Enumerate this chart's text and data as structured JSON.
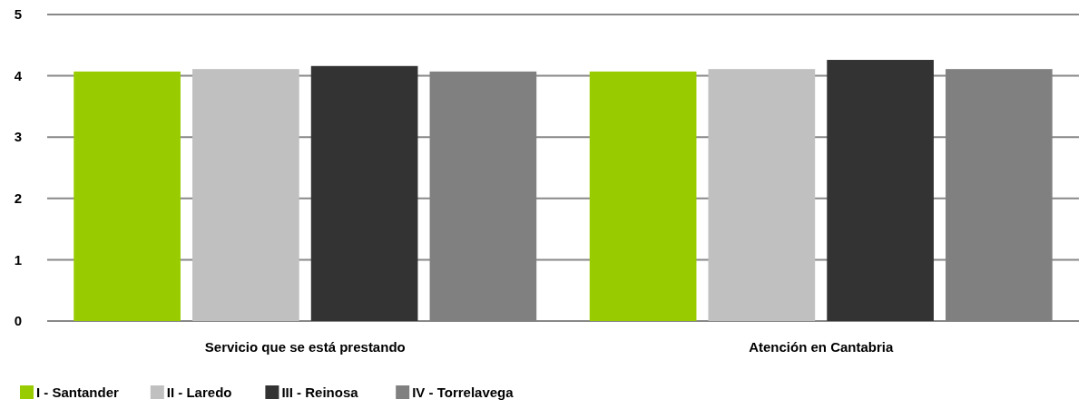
{
  "chart_data": {
    "type": "bar",
    "categories": [
      "Servicio que se está prestando",
      "Atención en Cantabria"
    ],
    "series": [
      {
        "name": "I - Santander",
        "color": "#99cc00",
        "values": [
          4.07,
          4.07
        ]
      },
      {
        "name": "II - Laredo",
        "color": "#c0c0c0",
        "values": [
          4.11,
          4.11
        ]
      },
      {
        "name": "III - Reinosa",
        "color": "#333333",
        "values": [
          4.16,
          4.26
        ]
      },
      {
        "name": "IV - Torrelavega",
        "color": "#808080",
        "values": [
          4.07,
          4.11
        ]
      }
    ],
    "ylim": [
      0,
      5
    ],
    "yticks": [
      0,
      1,
      2,
      3,
      4,
      5
    ],
    "grid": "y",
    "legend": "bottom left"
  }
}
